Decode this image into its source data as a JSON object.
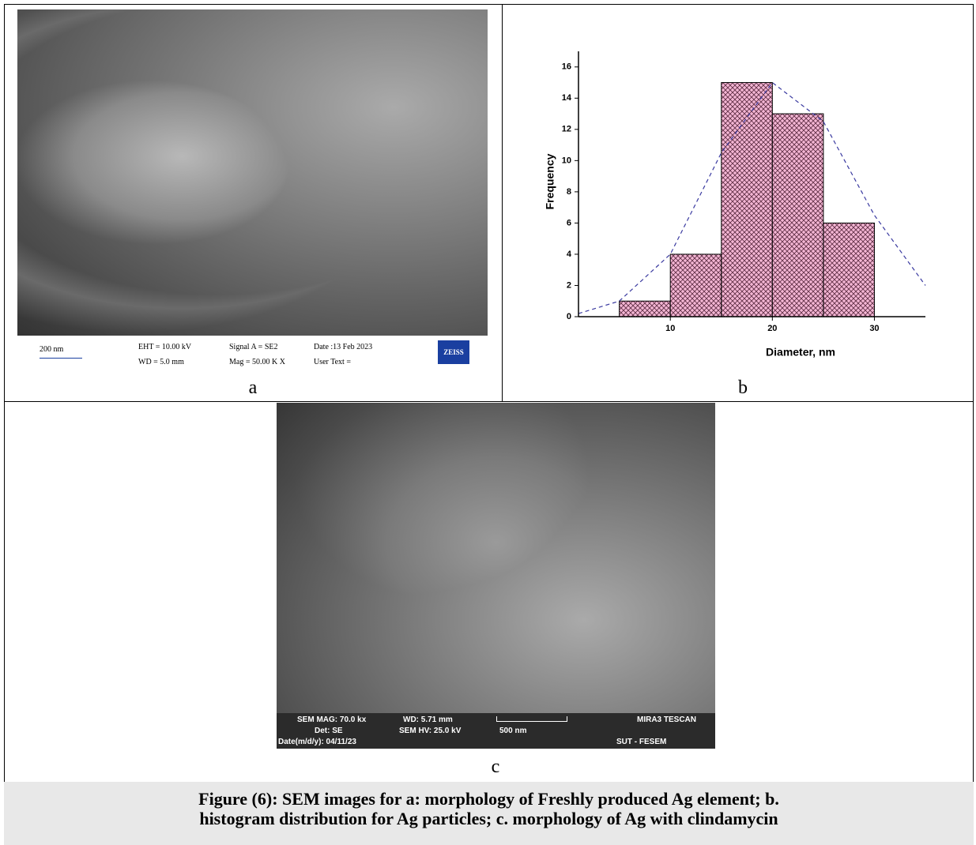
{
  "panel_a": {
    "label": "a",
    "scale_bar": "200 nm",
    "info": [
      "EHT = 10.00 kV",
      "WD = 5.0 mm",
      "Signal A = SE2",
      "Mag =  50.00 K X",
      "Date :13 Feb 2023",
      "User Text ="
    ],
    "logo": "ZEISS"
  },
  "panel_b": {
    "label": "b"
  },
  "chart_data": {
    "type": "histogram",
    "xlabel": "Diameter, nm",
    "ylabel": "Frequency",
    "bins": [
      5,
      10,
      15,
      20,
      25,
      30
    ],
    "values": [
      1,
      4,
      15,
      13,
      6
    ],
    "color": "#f4b6d4",
    "hatch_color": "#5a2a40",
    "xlim": [
      1,
      35
    ],
    "ylim": [
      0,
      17
    ],
    "xticks": [
      10,
      20,
      30
    ],
    "yticks": [
      0,
      2,
      4,
      6,
      8,
      10,
      12,
      14,
      16
    ],
    "fit_curve": {
      "x": [
        1,
        5,
        10,
        15,
        20,
        25,
        30,
        35
      ],
      "values": [
        0.2,
        1,
        4,
        10.5,
        15,
        12.5,
        6.5,
        2
      ],
      "color": "#3a3aa0"
    }
  },
  "panel_c": {
    "label": "c",
    "info": [
      "SEM MAG: 70.0 kx",
      "WD: 5.71 mm",
      "MIRA3 TESCAN",
      "Det: SE",
      "SEM HV: 25.0 kV",
      "500 nm",
      "Date(m/d/y): 04/11/23",
      "SUT - FESEM"
    ]
  },
  "caption": [
    "Figure (6): SEM images for a: morphology of Freshly produced Ag element; b.",
    "histogram distribution for Ag particles; c. morphology of  Ag with  clindamycin"
  ]
}
